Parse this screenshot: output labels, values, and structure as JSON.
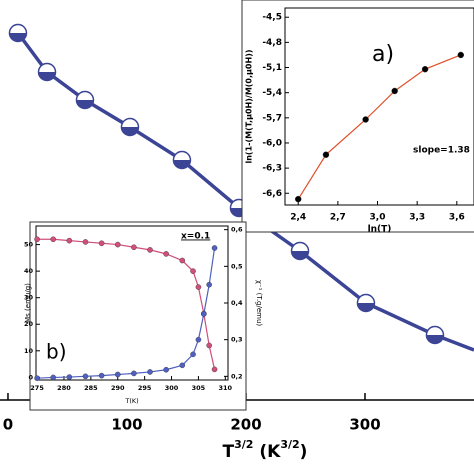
{
  "chart_data": [
    {
      "type": "line",
      "x_label_parts": [
        "T",
        "3/2",
        " (K",
        "3/2",
        ")"
      ],
      "x": [
        8.4,
        32.8,
        64.7,
        102.5,
        146.2,
        194.1,
        245.4,
        300.8,
        358.8
      ],
      "values": [
        367,
        328,
        300,
        273,
        240,
        192,
        149,
        97,
        65
      ],
      "color": "#3c4496",
      "marker": "half-filled",
      "xlim": [
        -6.7,
        391.6
      ],
      "ylim": [
        0,
        400
      ],
      "xticks": [
        0,
        100,
        200,
        300
      ]
    },
    {
      "type": "scatter",
      "label": "a)",
      "annotation": "slope=1.38",
      "x_label": "ln(T)",
      "y_label": "ln(1-(M(T,μ0H)/M(0,μ0H))",
      "x": [
        2.4,
        2.61,
        2.91,
        3.13,
        3.36,
        3.63
      ],
      "values": [
        -6.67,
        -6.14,
        -5.72,
        -5.38,
        -5.12,
        -4.95
      ],
      "color": "#000000",
      "line_color": "#e0502a",
      "xlim": [
        2.3,
        3.73
      ],
      "ylim": [
        -6.74,
        -4.39
      ],
      "xticks": [
        {
          "value": 2.4,
          "label": "2,4"
        },
        {
          "value": 2.7,
          "label": "2,7"
        },
        {
          "value": 3.0,
          "label": "3,0"
        },
        {
          "value": 3.3,
          "label": "3,3"
        },
        {
          "value": 3.6,
          "label": "3,6"
        }
      ],
      "yticks": [
        {
          "value": -4.5,
          "label": "-4,5"
        },
        {
          "value": -4.8,
          "label": "-4,8"
        },
        {
          "value": -5.1,
          "label": "-5,1"
        },
        {
          "value": -5.4,
          "label": "-5,4"
        },
        {
          "value": -5.7,
          "label": "-5,7"
        },
        {
          "value": -6.0,
          "label": "-6,0"
        },
        {
          "value": -6.3,
          "label": "-6,3"
        },
        {
          "value": -6.6,
          "label": "-6,6"
        }
      ]
    },
    {
      "type": "line",
      "label": "b)",
      "annotation": "x=0.1",
      "x_label": "T(K)",
      "y_label": "Ms (emu/g)",
      "y2_label": "χ⁻¹ (T.g/emu)",
      "x": [
        275,
        278,
        281,
        284,
        287,
        290,
        293,
        296,
        299,
        302,
        304,
        305,
        306,
        307,
        308
      ],
      "series": [
        {
          "name": "Ms",
          "color": "#d0507a",
          "values": [
            52,
            52,
            51.5,
            51,
            50.5,
            50,
            49,
            48,
            46.5,
            44,
            40,
            34,
            24,
            12,
            3
          ]
        },
        {
          "name": "χ⁻¹",
          "color": "#5060c0",
          "axis": "y2",
          "values": [
            0.195,
            0.197,
            0.198,
            0.2,
            0.202,
            0.205,
            0.208,
            0.212,
            0.218,
            0.23,
            0.26,
            0.3,
            0.37,
            0.45,
            0.55
          ]
        }
      ],
      "xlim": [
        274.8,
        310.5
      ],
      "ylim": [
        -1,
        57
      ],
      "y2lim": [
        0.19,
        0.61
      ],
      "xticks": [
        275,
        280,
        285,
        290,
        295,
        300,
        305,
        310
      ],
      "yticks": [
        0,
        10,
        20,
        30,
        40,
        50
      ],
      "y2ticks": [
        {
          "value": 0.2,
          "label": "0,2"
        },
        {
          "value": 0.3,
          "label": "0,3"
        },
        {
          "value": 0.4,
          "label": "0,4"
        },
        {
          "value": 0.5,
          "label": "0,5"
        },
        {
          "value": 0.6,
          "label": "0,6"
        }
      ]
    }
  ]
}
